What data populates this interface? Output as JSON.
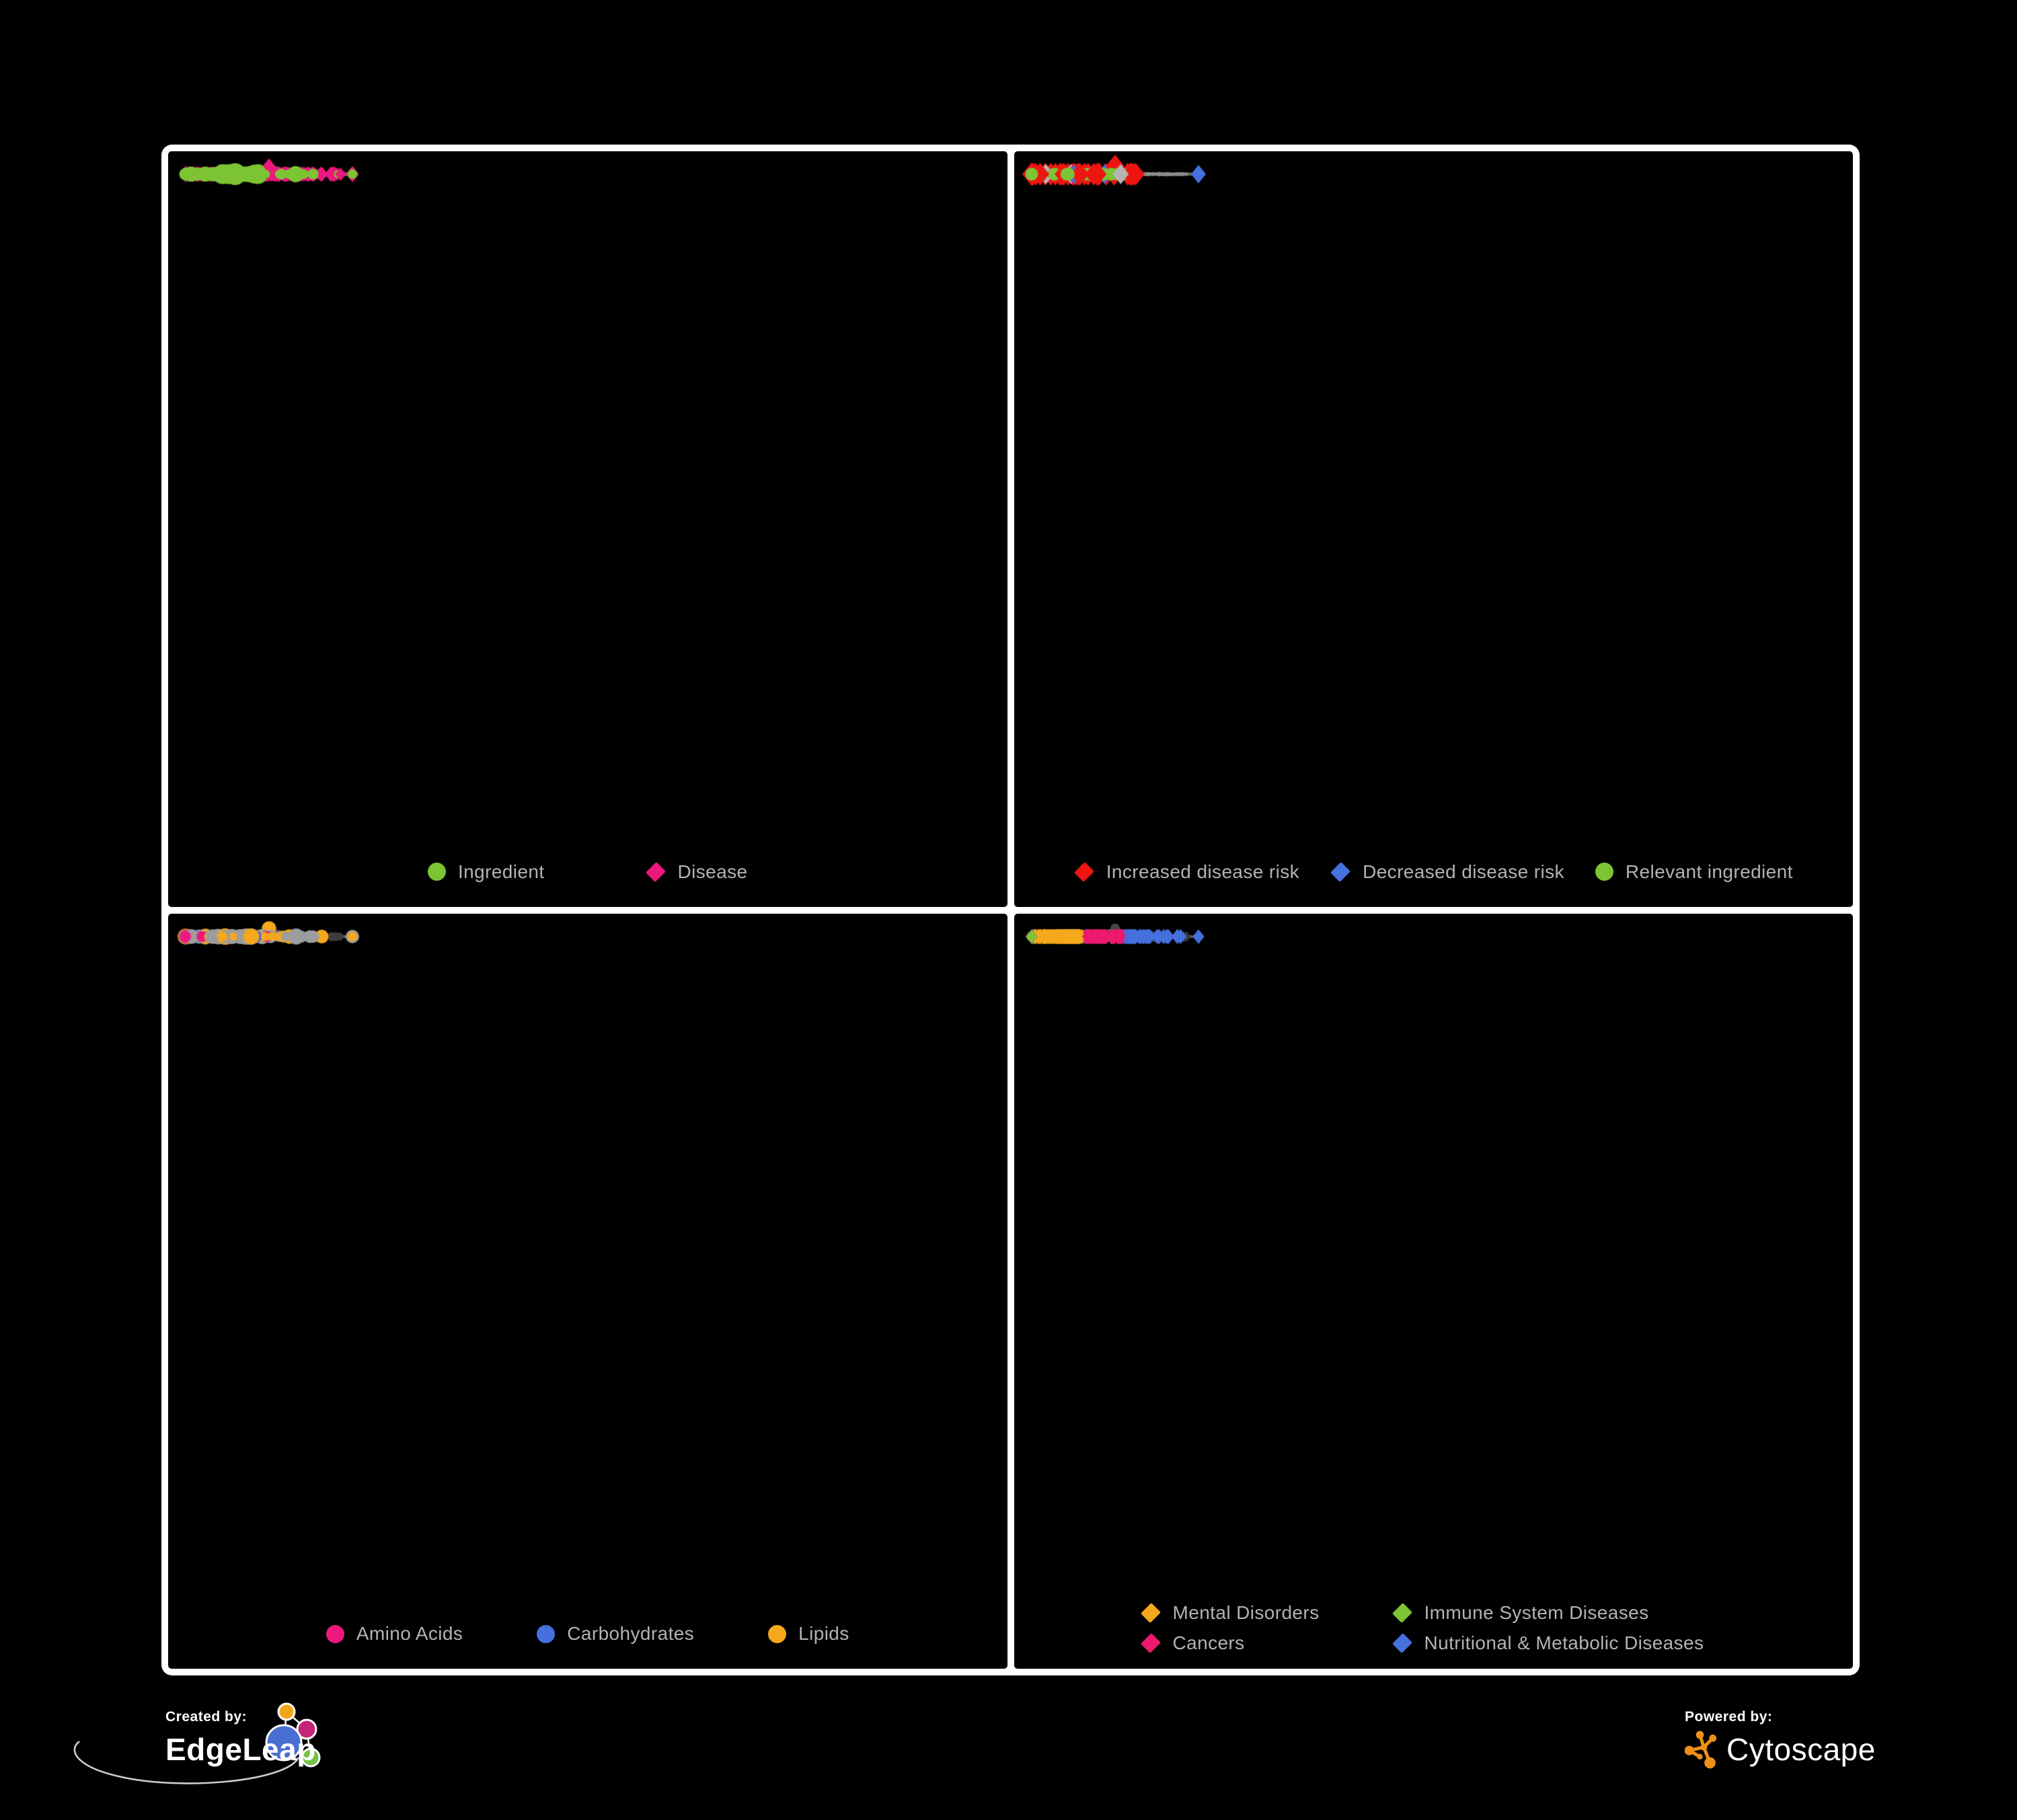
{
  "branding": {
    "created_by": {
      "label": "Created by:",
      "name": "EdgeLeap"
    },
    "powered_by": {
      "label": "Powered by:",
      "name": "Cytoscape"
    }
  },
  "frame": {
    "background": "#ffffff",
    "panel_background": "#000000"
  },
  "legend_text_color": "#b3b3b3",
  "topology": {
    "seed": 77,
    "core": [
      0.355,
      0.5
    ],
    "coreSplit": 0.075,
    "coreHubs": 10,
    "ringHubs": 22,
    "farHubs": 13,
    "extraEdges": 12,
    "leafCore": 13,
    "leafRing": 6,
    "leafFar": 9,
    "subProb": 0.1,
    "chains": 14,
    "fanProb": 0.55,
    "special": [
      0.5,
      0.43
    ]
  },
  "panels": [
    {
      "id": "ingredient-disease",
      "legend": [
        {
          "label": "Ingredient",
          "shape": "circle",
          "color": "#7dc434"
        },
        {
          "label": "Disease",
          "shape": "diamond",
          "color": "#ec187d"
        }
      ],
      "network": {
        "mode": "p1",
        "edge": "#6e6e6e",
        "edgeWidth": 2.6,
        "edgeAlpha": 0.92,
        "green": "#7dc434",
        "pink": "#ec187d"
      }
    },
    {
      "id": "disease-risk",
      "legend": [
        {
          "label": "Increased disease risk",
          "shape": "diamond",
          "color": "#ee1511"
        },
        {
          "label": "Decreased disease risk",
          "shape": "diamond",
          "color": "#4570dd"
        },
        {
          "label": "Relevant ingredient",
          "shape": "circle",
          "color": "#7dc434"
        }
      ],
      "network": {
        "mode": "p2",
        "edge": "#9a9a9a",
        "edgeWidth": 1.15,
        "edgeAlpha": 0.55,
        "base": "#8d8d8d",
        "red": "#ee1511",
        "blue": "#4570dd",
        "gray": "#b5b5b5",
        "green": "#7dc434"
      }
    },
    {
      "id": "nutrient-classes",
      "legend": [
        {
          "label": "Amino Acids",
          "shape": "circle",
          "color": "#ec187d"
        },
        {
          "label": "Carbohydrates",
          "shape": "circle",
          "color": "#4570dd"
        },
        {
          "label": "Lipids",
          "shape": "circle",
          "color": "#f5a81d"
        }
      ],
      "network": {
        "mode": "p3",
        "edge": "#a0a0a0",
        "edgeWidth": 1.1,
        "edgeAlpha": 0.5,
        "dim": "#3f3f3f",
        "grayCircle": "#9d9d9d",
        "orange": "#f5a81d",
        "pink": "#ec187d",
        "blue": "#4570dd"
      }
    },
    {
      "id": "disease-classes",
      "legend": [
        {
          "label": "Mental Disorders",
          "shape": "diamond",
          "color": "#f5a81d"
        },
        {
          "label": "Immune System Diseases",
          "shape": "diamond",
          "color": "#7dc434"
        },
        {
          "label": "Cancers",
          "shape": "diamond",
          "color": "#ec1a6e"
        },
        {
          "label": "Nutritional & Metabolic Diseases",
          "shape": "diamond",
          "color": "#4570dd"
        }
      ],
      "network": {
        "mode": "p4",
        "edge": "#989898",
        "edgeWidth": 1.05,
        "edgeAlpha": 0.45,
        "dim": "#3b3b3b",
        "hubCol": "#474747",
        "orange": "#f5a81d",
        "pink": "#ec1a6e",
        "blue": "#4570dd",
        "green": "#7dc434"
      }
    }
  ]
}
